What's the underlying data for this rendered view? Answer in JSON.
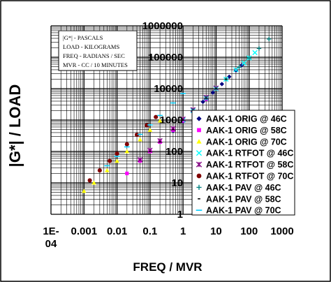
{
  "chart_data": {
    "type": "scatter",
    "title": "",
    "xlabel": "FREQ / MVR",
    "ylabel": "|G*| / LOAD",
    "x_scale": "log",
    "y_scale": "log",
    "xlim": [
      0.0001,
      1000
    ],
    "ylim": [
      1,
      1000000
    ],
    "x_tick_labels": [
      "1E-\n04",
      "0.001",
      "0.01",
      "0.1",
      "1",
      "10",
      "100",
      "1000"
    ],
    "y_tick_labels": [
      "1",
      "10",
      "100",
      "1000",
      "10000",
      "100000",
      "1000000"
    ],
    "grid": true,
    "legend_position": "bottom-right",
    "units_note": [
      "|G*|  -  PASCALS",
      "LOAD  -  KILOGRAMS",
      "FREQ  -  RADIANS / SEC",
      "MVR  -  CC / 10 MINUTES"
    ],
    "series": [
      {
        "name": "AAK-1 ORIG @ 46C",
        "marker": "diamond",
        "color": "#000080",
        "x": [
          0.5,
          1,
          2,
          4,
          8,
          15,
          25,
          40,
          60
        ],
        "y": [
          450,
          900,
          1800,
          3800,
          7500,
          14000,
          24000,
          38000,
          56000
        ]
      },
      {
        "name": "AAK-1 ORIG @ 58C",
        "marker": "square",
        "color": "#ff00ff",
        "x": [
          0.02,
          0.05,
          0.1,
          0.2,
          0.5,
          1,
          2,
          5
        ],
        "y": [
          20,
          50,
          100,
          200,
          480,
          950,
          1900,
          4600
        ]
      },
      {
        "name": "AAK-1 ORIG @ 70C",
        "marker": "triangle",
        "color": "#ffff00",
        "x": [
          0.001,
          0.002,
          0.005,
          0.01,
          0.02,
          0.05,
          0.1,
          0.2
        ],
        "y": [
          5.5,
          10,
          25,
          50,
          100,
          240,
          480,
          950
        ]
      },
      {
        "name": "AAK-1 RTFOT @ 46C",
        "marker": "x",
        "color": "#00ffff",
        "x": [
          1,
          2,
          5,
          10,
          20,
          40,
          70,
          100,
          150
        ],
        "y": [
          1000,
          2000,
          5000,
          10000,
          20000,
          40000,
          65000,
          95000,
          140000
        ]
      },
      {
        "name": "AAK-1 RTFOT @ 58C",
        "marker": "star",
        "color": "#800080",
        "x": [
          0.05,
          0.1,
          0.2,
          0.5,
          1,
          2,
          5,
          10
        ],
        "y": [
          55,
          110,
          220,
          540,
          1080,
          2150,
          5300,
          10500
        ]
      },
      {
        "name": "AAK-1 RTFOT @ 70C",
        "marker": "circle",
        "color": "#800000",
        "x": [
          0.0015,
          0.003,
          0.006,
          0.01,
          0.02,
          0.04,
          0.08,
          0.15
        ],
        "y": [
          12,
          25,
          50,
          85,
          170,
          340,
          680,
          1250
        ]
      },
      {
        "name": "AAK-1 PAV @ 46C",
        "marker": "plus",
        "color": "#008080",
        "x": [
          2,
          5,
          10,
          20,
          50,
          100,
          200,
          400
        ],
        "y": [
          2000,
          5000,
          10000,
          20000,
          48000,
          95000,
          190000,
          380000
        ]
      },
      {
        "name": "AAK-1 PAV @ 58C",
        "marker": "dash",
        "color": "#000000",
        "x": [
          0.1,
          0.2,
          0.5,
          1,
          2,
          5,
          10,
          20
        ],
        "y": [
          100,
          200,
          500,
          1000,
          2000,
          5000,
          10000,
          20000
        ]
      },
      {
        "name": "AAK-1 PAV @ 70C",
        "marker": "hline",
        "color": "#00ccff",
        "x": [
          0.005,
          0.01,
          0.02,
          0.05,
          0.1,
          0.2,
          0.5,
          1
        ],
        "y": [
          35,
          70,
          140,
          350,
          700,
          1400,
          3500,
          7000
        ]
      }
    ]
  }
}
